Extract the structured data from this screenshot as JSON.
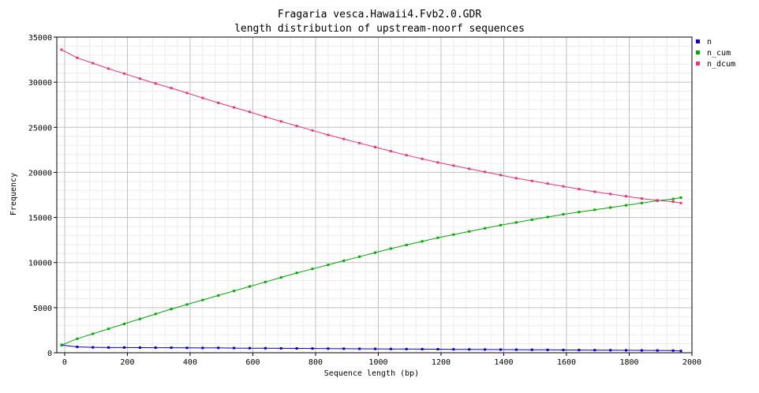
{
  "chart_data": {
    "type": "line",
    "title": "Fragaria vesca.Hawaii4.Fvb2.0.GDR",
    "subtitle": "length distribution of upstream-noorf sequences",
    "xlabel": "Sequence length (bp)",
    "ylabel": "Frequency",
    "xlim": [
      -25,
      2000
    ],
    "ylim": [
      0,
      35000
    ],
    "xticks": [
      0,
      200,
      400,
      600,
      800,
      1000,
      1200,
      1400,
      1600,
      1800,
      2000
    ],
    "yticks": [
      0,
      5000,
      10000,
      15000,
      20000,
      25000,
      30000,
      35000
    ],
    "grid": true,
    "legend_position": "top-right",
    "x": [
      -10,
      40,
      90,
      140,
      190,
      240,
      290,
      340,
      390,
      440,
      490,
      540,
      590,
      640,
      690,
      740,
      790,
      840,
      890,
      940,
      990,
      1040,
      1090,
      1140,
      1190,
      1240,
      1290,
      1340,
      1390,
      1440,
      1490,
      1540,
      1590,
      1640,
      1690,
      1740,
      1790,
      1840,
      1890,
      1940,
      1965
    ],
    "series": [
      {
        "name": "n",
        "color": "#0000cc",
        "values": [
          850,
          650,
          600,
          580,
          580,
          570,
          560,
          560,
          540,
          530,
          540,
          520,
          510,
          500,
          490,
          480,
          470,
          460,
          450,
          440,
          430,
          420,
          410,
          400,
          390,
          380,
          370,
          360,
          350,
          340,
          330,
          320,
          310,
          300,
          290,
          280,
          270,
          260,
          250,
          240,
          200
        ]
      },
      {
        "name": "n_cum",
        "color": "#00aa00",
        "values": [
          850,
          1550,
          2100,
          2650,
          3200,
          3750,
          4300,
          4850,
          5350,
          5850,
          6350,
          6850,
          7350,
          7850,
          8350,
          8850,
          9300,
          9750,
          10200,
          10650,
          11100,
          11550,
          11950,
          12350,
          12750,
          13100,
          13450,
          13800,
          14150,
          14450,
          14750,
          15050,
          15350,
          15600,
          15850,
          16100,
          16350,
          16600,
          16850,
          17050,
          17200
        ]
      },
      {
        "name": "n_dcum",
        "color": "#ee3377",
        "values": [
          33600,
          32700,
          32100,
          31500,
          30950,
          30400,
          29850,
          29350,
          28800,
          28250,
          27700,
          27200,
          26700,
          26150,
          25650,
          25150,
          24650,
          24150,
          23700,
          23250,
          22800,
          22350,
          21900,
          21500,
          21100,
          20750,
          20400,
          20050,
          19700,
          19350,
          19050,
          18750,
          18450,
          18150,
          17850,
          17600,
          17350,
          17100,
          16900,
          16750,
          16600
        ]
      }
    ]
  }
}
